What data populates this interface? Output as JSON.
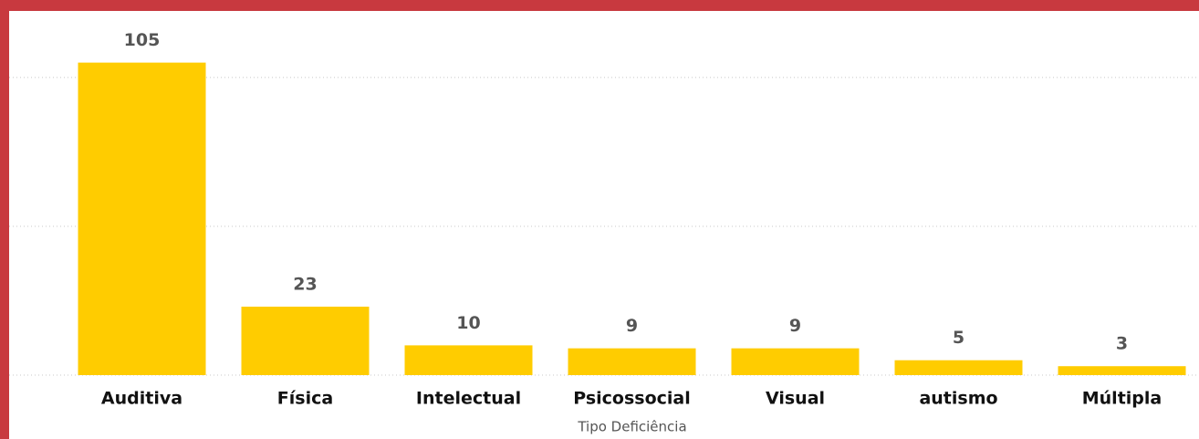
{
  "chart_data": {
    "type": "bar",
    "x_label": "Tipo Deficiência",
    "categories": [
      "Auditiva",
      "Física",
      "Intelectual",
      "Psicossocial",
      "Visual",
      "autismo",
      "Múltipla"
    ],
    "values": [
      105,
      23,
      10,
      9,
      9,
      5,
      3
    ],
    "color": "#FFCC00",
    "ylim": [
      0,
      115
    ],
    "yticks": [
      0,
      50,
      100
    ],
    "grid": true,
    "data_labels": true
  }
}
